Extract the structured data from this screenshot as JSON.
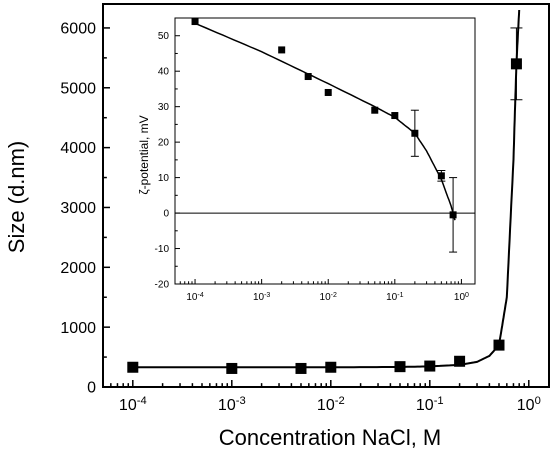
{
  "chart_data": [
    {
      "type": "scatter",
      "xlabel": "Concentration NaCl, M",
      "ylabel": "Size (d.nm)",
      "xscale": "log",
      "xlim": [
        5e-05,
        1.6
      ],
      "ylim": [
        0,
        6400
      ],
      "yticks": [
        0,
        1000,
        2000,
        3000,
        4000,
        5000,
        6000
      ],
      "xticks": [
        {
          "value": 0.0001,
          "base": "10",
          "exp": "-4"
        },
        {
          "value": 0.001,
          "base": "10",
          "exp": "-3"
        },
        {
          "value": 0.01,
          "base": "10",
          "exp": "-2"
        },
        {
          "value": 0.1,
          "base": "10",
          "exp": "-1"
        },
        {
          "value": 1,
          "base": "10",
          "exp": "0"
        }
      ],
      "series": [
        {
          "x": [
            0.0001,
            0.001,
            0.005,
            0.01,
            0.05,
            0.1,
            0.2,
            0.5,
            0.75
          ],
          "y": [
            330,
            310,
            310,
            330,
            340,
            350,
            430,
            700,
            5400
          ],
          "err": [
            0,
            0,
            0,
            0,
            0,
            0,
            0,
            0,
            600
          ]
        }
      ],
      "fit_curve": {
        "x": [
          0.0001,
          0.001,
          0.01,
          0.05,
          0.1,
          0.2,
          0.3,
          0.4,
          0.5,
          0.6,
          0.7,
          0.75,
          0.8
        ],
        "y": [
          330,
          330,
          330,
          335,
          345,
          370,
          420,
          520,
          700,
          1500,
          3800,
          5400,
          6300
        ]
      },
      "grid": false,
      "legend": "none"
    },
    {
      "type": "scatter",
      "xlabel": "",
      "ylabel": "ζ-potential, mV",
      "xscale": "log",
      "xlim": [
        5e-05,
        1.6
      ],
      "ylim": [
        -20,
        55
      ],
      "yticks": [
        -20,
        -10,
        0,
        10,
        20,
        30,
        40,
        50
      ],
      "xticks": [
        {
          "value": 0.0001,
          "base": "10",
          "exp": "-4"
        },
        {
          "value": 0.001,
          "base": "10",
          "exp": "-3"
        },
        {
          "value": 0.01,
          "base": "10",
          "exp": "-2"
        },
        {
          "value": 0.1,
          "base": "10",
          "exp": "-1"
        },
        {
          "value": 1,
          "base": "10",
          "exp": "0"
        }
      ],
      "zero_line": true,
      "series": [
        {
          "x": [
            0.0001,
            0.002,
            0.005,
            0.01,
            0.05,
            0.1,
            0.2,
            0.5,
            0.75
          ],
          "y": [
            54,
            46,
            38.5,
            34,
            29,
            27.5,
            22.5,
            10.5,
            -0.5
          ],
          "err": [
            0,
            0,
            0,
            0,
            0,
            0,
            6.5,
            1.5,
            10.5
          ]
        }
      ],
      "fit_curve": {
        "x": [
          0.0001,
          0.001,
          0.01,
          0.05,
          0.1,
          0.2,
          0.3,
          0.5,
          0.7,
          0.8
        ],
        "y": [
          53.5,
          45.5,
          36.5,
          30,
          27,
          22.5,
          17.5,
          9.5,
          2,
          -2
        ]
      },
      "grid": false,
      "legend": "none"
    }
  ]
}
